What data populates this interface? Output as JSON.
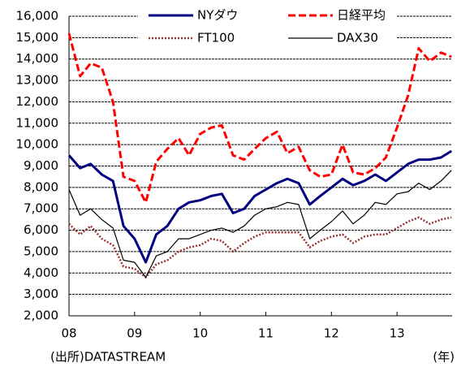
{
  "chart_data": {
    "type": "line",
    "x": [
      8,
      8.17,
      8.33,
      8.5,
      8.67,
      8.83,
      9,
      9.17,
      9.33,
      9.5,
      9.67,
      9.83,
      10,
      10.17,
      10.33,
      10.5,
      10.67,
      10.83,
      11,
      11.17,
      11.33,
      11.5,
      11.67,
      11.83,
      12,
      12.17,
      12.33,
      12.5,
      12.67,
      12.83,
      13,
      13.17,
      13.33,
      13.5,
      13.67,
      13.83
    ],
    "series": [
      {
        "name": "NYダウ",
        "color": "#000080",
        "style": "solid",
        "width": 3,
        "values": [
          9500,
          8900,
          9100,
          8600,
          8300,
          6200,
          5600,
          4500,
          5800,
          6200,
          7000,
          7300,
          7400,
          7600,
          7700,
          6800,
          7000,
          7600,
          7900,
          8200,
          8400,
          8200,
          7200,
          7600,
          8000,
          8400,
          8100,
          8300,
          8600,
          8300,
          8700,
          9100,
          9300,
          9300,
          9400,
          9700
        ]
      },
      {
        "name": "日経平均",
        "color": "#ff0000",
        "style": "dashed",
        "width": 3,
        "values": [
          15200,
          13200,
          13800,
          13600,
          12000,
          8500,
          8300,
          7300,
          9200,
          9800,
          10300,
          9500,
          10500,
          10800,
          10900,
          9500,
          9300,
          9800,
          10300,
          10600,
          9600,
          9900,
          8800,
          8500,
          8600,
          10000,
          8700,
          8600,
          8900,
          9400,
          10800,
          12300,
          14500,
          13900,
          14300,
          14100
        ]
      },
      {
        "name": "FT100",
        "color": "#993333",
        "style": "dotted",
        "width": 2.5,
        "values": [
          6300,
          5800,
          6200,
          5600,
          5300,
          4300,
          4200,
          3800,
          4400,
          4600,
          5000,
          5200,
          5300,
          5600,
          5500,
          5000,
          5400,
          5700,
          5900,
          5900,
          5900,
          5900,
          5200,
          5500,
          5700,
          5800,
          5400,
          5700,
          5800,
          5800,
          6100,
          6400,
          6600,
          6300,
          6500,
          6600
        ]
      },
      {
        "name": "DAX30",
        "color": "#000000",
        "style": "solid",
        "width": 1.2,
        "values": [
          7900,
          6700,
          7000,
          6500,
          6100,
          4600,
          4500,
          3800,
          4800,
          5000,
          5600,
          5600,
          5800,
          6000,
          6100,
          5900,
          6200,
          6700,
          7000,
          7100,
          7300,
          7200,
          5600,
          6000,
          6400,
          6900,
          6300,
          6700,
          7300,
          7200,
          7700,
          7800,
          8200,
          7900,
          8300,
          8800
        ]
      }
    ],
    "xlim": [
      8,
      13.84
    ],
    "xticks": [
      {
        "value": 8,
        "label": "08"
      },
      {
        "value": 9,
        "label": "09"
      },
      10,
      11,
      12,
      13
    ],
    "ylim": [
      2000,
      16000
    ],
    "yticks": [
      {
        "value": 2000,
        "label": "2,000"
      },
      {
        "value": 3000,
        "label": "3,000"
      },
      {
        "value": 4000,
        "label": "4,000"
      },
      {
        "value": 5000,
        "label": "5,000"
      },
      {
        "value": 6000,
        "label": "6,000"
      },
      {
        "value": 7000,
        "label": "7,000"
      },
      {
        "value": 8000,
        "label": "8,000"
      },
      {
        "value": 9000,
        "label": "9,000"
      },
      {
        "value": 10000,
        "label": "10,000"
      },
      {
        "value": 11000,
        "label": "11,000"
      },
      {
        "value": 12000,
        "label": "12,000"
      },
      {
        "value": 13000,
        "label": "13,000"
      },
      {
        "value": 14000,
        "label": "14,000"
      },
      {
        "value": 15000,
        "label": "15,000"
      },
      {
        "value": 16000,
        "label": "16,000"
      }
    ],
    "grid": true,
    "source": "(出所)DATASTREAM",
    "x_unit": "(年)"
  }
}
